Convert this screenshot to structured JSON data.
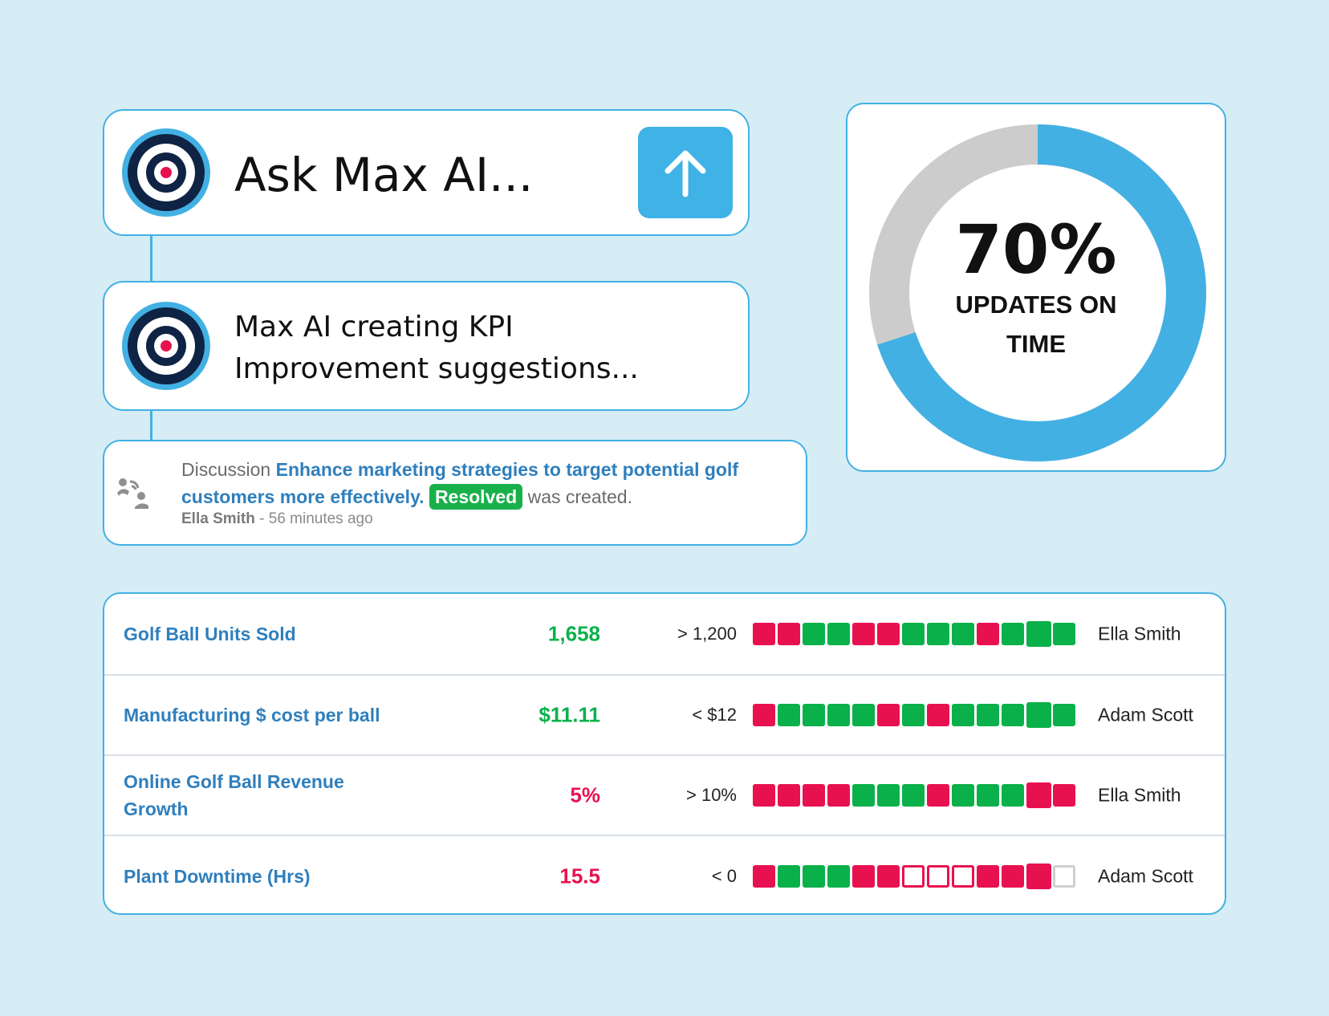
{
  "colors": {
    "background": "#d6edf6",
    "accent": "#43b0e3",
    "green": "#0ab14a",
    "red": "#e8114f",
    "link": "#2f7fbd"
  },
  "ask_card": {
    "logo_icon": "target-logo-icon",
    "text": "Ask Max AI...",
    "send_icon": "arrow-up-icon"
  },
  "status_card": {
    "logo_icon": "target-logo-icon",
    "text": "Max AI creating KPI Improvement suggestions..."
  },
  "discussion": {
    "icon": "discussion-icon",
    "prefix": "Discussion",
    "title": "Enhance marketing strategies to target potential golf customers more effectively.",
    "badge": "Resolved",
    "suffix": "was created.",
    "author": "Ella Smith",
    "time": "- 56 minutes ago"
  },
  "donut": {
    "percent": 70,
    "value_label": "70%",
    "caption_line1": "UPDATES ON",
    "caption_line2": "TIME",
    "filled_color": "#43b0e3",
    "remaining_color": "#cccccc"
  },
  "kpis": [
    {
      "name": "Golf Ball Units Sold",
      "value": "1,658",
      "status": "green",
      "target": "> 1,200",
      "history": [
        "r",
        "r",
        "g",
        "g",
        "r",
        "r",
        "g",
        "g",
        "g",
        "r",
        "g",
        "g",
        "g"
      ],
      "current_index": 11,
      "owner": "Ella Smith"
    },
    {
      "name": "Manufacturing $ cost per ball",
      "value": "$11.11",
      "status": "green",
      "target": "< $12",
      "history": [
        "r",
        "g",
        "g",
        "g",
        "g",
        "r",
        "g",
        "r",
        "g",
        "g",
        "g",
        "g",
        "g"
      ],
      "current_index": 11,
      "owner": "Adam Scott"
    },
    {
      "name": "Online Golf Ball Revenue Growth",
      "value": "5%",
      "status": "red",
      "target": "> 10%",
      "history": [
        "r",
        "r",
        "r",
        "r",
        "g",
        "g",
        "g",
        "r",
        "g",
        "g",
        "g",
        "r",
        "r"
      ],
      "current_index": 11,
      "owner": "Ella Smith"
    },
    {
      "name": "Plant Downtime (Hrs)",
      "value": "15.5",
      "status": "red",
      "target": "< 0",
      "history": [
        "r",
        "g",
        "g",
        "g",
        "r",
        "r",
        "e",
        "e",
        "e",
        "r",
        "r",
        "r",
        "n"
      ],
      "current_index": 11,
      "owner": "Adam Scott"
    }
  ]
}
